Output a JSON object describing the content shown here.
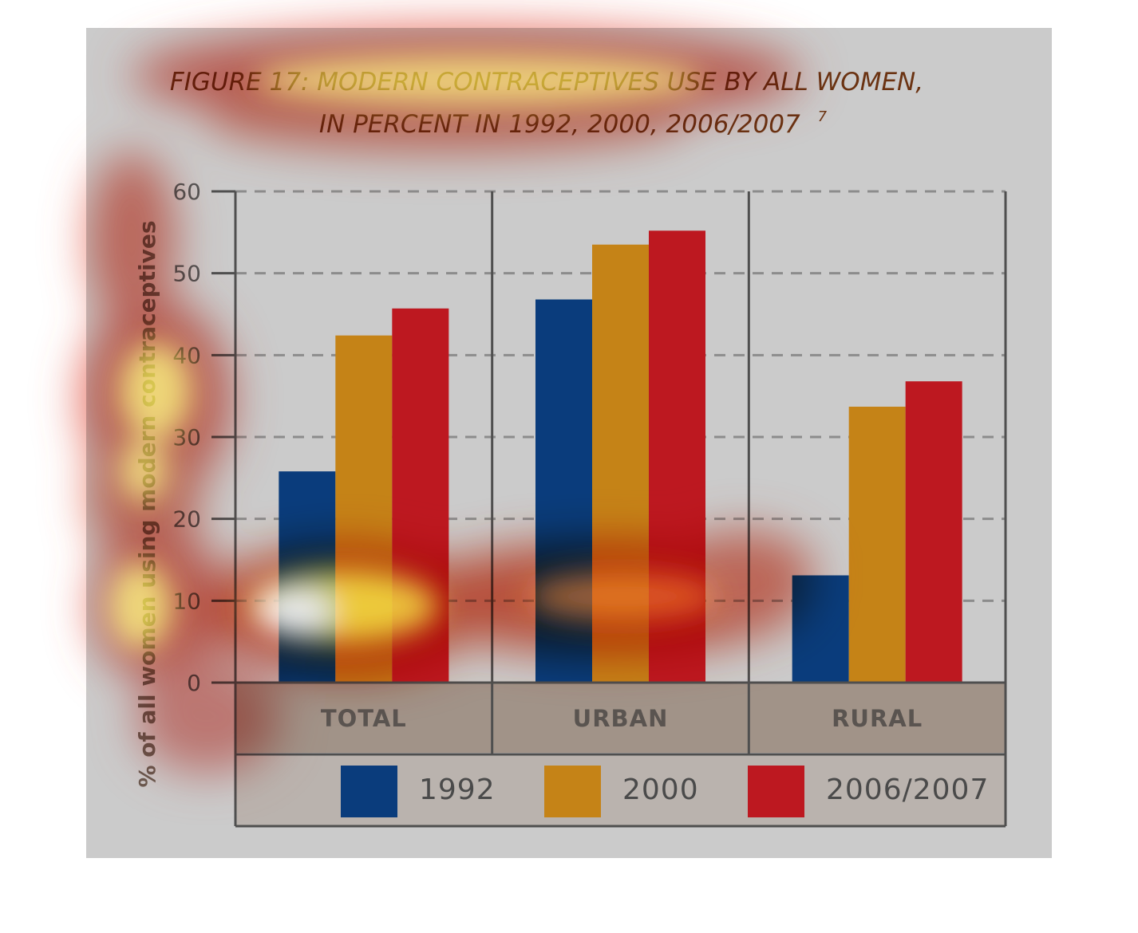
{
  "chart_data": {
    "type": "bar",
    "title_line1": "FIGURE 17: MODERN CONTRACEPTIVES USE BY ALL WOMEN,",
    "title_line2": "IN PERCENT IN 1992, 2000, 2006/2007",
    "title_footnote": "7",
    "ylabel": "% of all women using modern contraceptives",
    "xlabel": "",
    "ylim": [
      0,
      60
    ],
    "yticks": [
      0,
      10,
      20,
      30,
      40,
      50,
      60
    ],
    "grid": true,
    "legend_position": "bottom",
    "categories": [
      "TOTAL",
      "URBAN",
      "RURAL"
    ],
    "series": [
      {
        "name": "1992",
        "color": "#0a3c7c",
        "values": [
          25.8,
          46.8,
          13.1
        ]
      },
      {
        "name": "2000",
        "color": "#c58317",
        "values": [
          42.4,
          53.5,
          33.7
        ]
      },
      {
        "name": "2006/2007",
        "color": "#bd1820",
        "values": [
          45.7,
          55.2,
          36.8
        ]
      }
    ]
  },
  "colors": {
    "panel_background": "#cbcbcb",
    "category_band": "#a19388",
    "legend_band": "#bab3ae",
    "axis": "#4f4f4f"
  }
}
